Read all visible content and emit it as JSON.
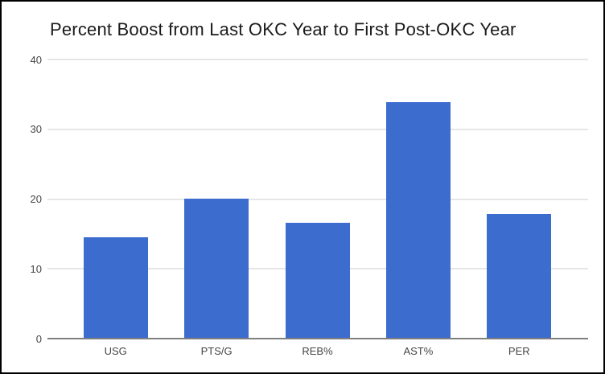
{
  "chart_data": {
    "type": "bar",
    "title": "Percent Boost from Last OKC Year to First Post-OKC Year",
    "categories": [
      "USG",
      "PTS/G",
      "REB%",
      "AST%",
      "PER"
    ],
    "values": [
      14.4,
      19.9,
      16.5,
      33.8,
      17.8
    ],
    "xlabel": "",
    "ylabel": "",
    "ylim": [
      0,
      40
    ],
    "yticks": [
      0,
      10,
      20,
      30,
      40
    ],
    "grid": true,
    "legend": "none",
    "colors": {
      "bar": "#3b6cce",
      "gridline": "#e6e6e6",
      "baseline": "#7f7f7f",
      "axis_label": "#444444",
      "title": "#1a1a1a",
      "background": "#ffffff",
      "frame_border": "#000000"
    }
  }
}
